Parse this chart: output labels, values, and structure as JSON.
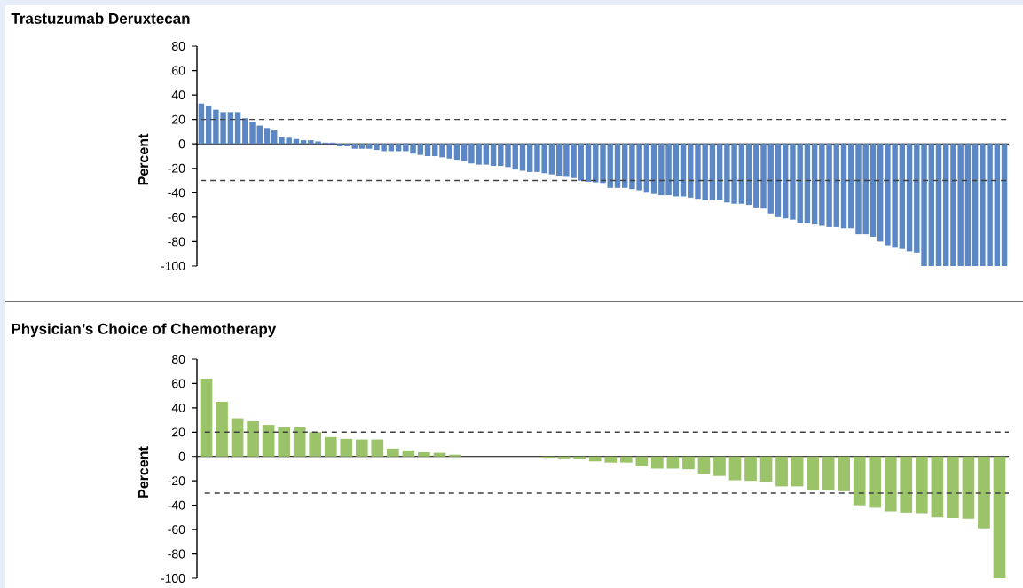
{
  "chart_data": [
    {
      "type": "bar",
      "title": "Trastuzumab Deruxtecan",
      "ylabel": "Percent",
      "color": "#5b87c5",
      "ylim": [
        -100,
        80
      ],
      "yticks": [
        -100,
        -80,
        -60,
        -40,
        -20,
        0,
        20,
        40,
        60,
        80
      ],
      "categories": [
        null,
        null,
        null,
        null,
        null,
        null,
        null,
        null,
        null,
        null,
        null,
        null,
        null,
        null,
        null,
        null,
        null,
        null,
        null,
        null,
        null,
        null,
        null,
        null,
        null,
        null,
        null,
        null,
        null,
        null,
        null,
        null,
        null,
        null,
        null,
        null,
        null,
        null,
        null,
        null,
        null,
        null,
        null,
        null,
        null,
        null,
        null,
        null,
        null,
        null,
        null,
        null,
        null,
        null,
        null,
        null,
        null,
        null,
        null,
        null,
        null,
        null,
        null,
        null,
        null,
        null,
        null,
        null,
        null,
        null,
        null,
        null,
        null,
        null,
        null,
        null,
        null,
        null,
        null,
        null,
        null,
        null,
        null,
        null,
        null,
        null,
        null,
        null,
        null,
        null,
        null,
        null,
        null,
        null,
        null,
        null,
        null,
        null,
        null,
        null,
        null,
        null,
        null,
        null,
        null,
        null,
        null,
        null,
        null,
        null,
        null
      ],
      "values": [
        33,
        31,
        28,
        26,
        26,
        26,
        21,
        18,
        15,
        13,
        11,
        5.5,
        5,
        4,
        3,
        3,
        2,
        1,
        1,
        -2,
        -2,
        -4,
        -4,
        -4,
        -5,
        -6,
        -6,
        -6,
        -6,
        -8,
        -9,
        -10,
        -10,
        -11,
        -12,
        -13,
        -14,
        -16,
        -17,
        -17,
        -18,
        -18,
        -19,
        -21,
        -22,
        -23,
        -23,
        -24,
        -25,
        -26,
        -27,
        -28,
        -30,
        -31,
        -31.5,
        -32,
        -36,
        -36,
        -36,
        -37,
        -38,
        -40,
        -41,
        -42,
        -42,
        -43,
        -43,
        -44,
        -45,
        -46,
        -46,
        -46,
        -48,
        -49,
        -49,
        -50,
        -52,
        -53,
        -57,
        -60,
        -61,
        -62,
        -65,
        -65,
        -66,
        -67,
        -68,
        -68,
        -69,
        -69,
        -74,
        -74,
        -76,
        -80,
        -83,
        -85,
        -86,
        -88,
        -89,
        -100,
        -100,
        -100,
        -100,
        -100,
        -100,
        -100,
        -100,
        -100,
        -100,
        -100,
        -100
      ],
      "ref_lines": [
        {
          "axis": "y",
          "value": 20,
          "line_style": "dashed"
        },
        {
          "axis": "y",
          "value": -30,
          "line_style": "dashed"
        }
      ]
    },
    {
      "type": "bar",
      "title": "Physician’s Choice of Chemotherapy",
      "ylabel": "Percent",
      "color": "#9bc46a",
      "ylim": [
        -100,
        80
      ],
      "yticks": [
        -100,
        -80,
        -60,
        -40,
        -20,
        0,
        20,
        40,
        60,
        80
      ],
      "categories": [
        null,
        null,
        null,
        null,
        null,
        null,
        null,
        null,
        null,
        null,
        null,
        null,
        null,
        null,
        null,
        null,
        null,
        null,
        null,
        null,
        null,
        null,
        null,
        null,
        null,
        null,
        null,
        null,
        null,
        null,
        null,
        null,
        null,
        null,
        null,
        null,
        null,
        null,
        null,
        null,
        null,
        null,
        null,
        null,
        null,
        null,
        null,
        null,
        null,
        null,
        null,
        null
      ],
      "values": [
        64,
        45,
        31.5,
        29,
        26,
        24,
        24,
        20,
        16,
        14.5,
        14,
        14,
        6.5,
        5,
        3.5,
        3,
        1.5,
        0,
        0,
        0,
        0,
        0,
        -1,
        -1.5,
        -2,
        -4,
        -5,
        -5,
        -8,
        -10,
        -10,
        -10.5,
        -14,
        -16,
        -19.5,
        -20,
        -21,
        -24.5,
        -24.5,
        -27.5,
        -27.5,
        -28.5,
        -40,
        -42,
        -45,
        -46,
        -46.5,
        -50,
        -50.5,
        -51,
        -59,
        -100
      ],
      "ref_lines": [
        {
          "axis": "y",
          "value": 20,
          "line_style": "dashed"
        },
        {
          "axis": "y",
          "value": -30,
          "line_style": "dashed"
        }
      ]
    }
  ]
}
